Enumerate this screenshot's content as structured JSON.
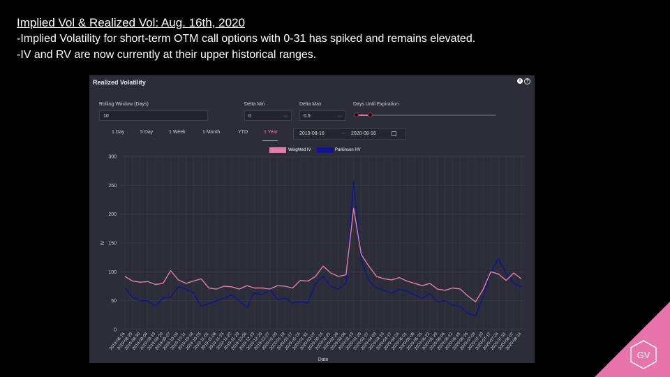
{
  "slide": {
    "title": "Implied Vol & Realized Vol: Aug. 16th, 2020",
    "lines": [
      "-Implied Volatility for short-term OTM call options with 0-31 has spiked and remains elevated.",
      "-IV and RV are now currently at their upper historical ranges."
    ]
  },
  "panel": {
    "title": "Realized Volatility",
    "info_icon_label": "i",
    "help_icon_label": "?",
    "controls": {
      "rolling_window_label": "Rolling Window (Days)",
      "rolling_window_value": "10",
      "delta_min_label": "Delta Min",
      "delta_min_value": "0",
      "delta_max_label": "Delta Max",
      "delta_max_value": "0.5",
      "days_until_expiration_label": "Days Until Expiration",
      "chevron": "⌵"
    },
    "range_tabs": [
      "1 Day",
      "5 Day",
      "1 Week",
      "1 Month",
      "YTD",
      "1 Year"
    ],
    "active_tab": "1 Year",
    "date_from": "2019-08-16",
    "date_arrow": "→",
    "date_to": "2020-08-16"
  },
  "colors": {
    "weighted_iv": "#e77ba9",
    "parkinson_hv": "#0f1592",
    "accent": "#e775ab"
  },
  "chart_data": {
    "type": "line",
    "xlabel": "Date",
    "ylabel": "IV",
    "ylim": [
      0,
      300
    ],
    "yticks": [
      0,
      50,
      100,
      150,
      200,
      250,
      300
    ],
    "grid": true,
    "legend_position": "top-center",
    "x_tick_labels": [
      "2019-08-16",
      "2019-08-23",
      "2019-08-30",
      "2019-09-06",
      "2019-09-13",
      "2019-09-20",
      "2019-09-27",
      "2019-10-04",
      "2019-10-11",
      "2019-10-18",
      "2019-10-25",
      "2019-11-01",
      "2019-11-08",
      "2019-11-15",
      "2019-11-22",
      "2019-11-29",
      "2019-12-06",
      "2019-12-13",
      "2019-12-20",
      "2019-12-27",
      "2020-01-03",
      "2020-01-10",
      "2020-01-17",
      "2020-01-24",
      "2020-01-31",
      "2020-02-07",
      "2020-02-14",
      "2020-02-21",
      "2020-02-28",
      "2020-03-06",
      "2020-03-13",
      "2020-03-20",
      "2020-03-27",
      "2020-04-03",
      "2020-04-10",
      "2020-04-17",
      "2020-04-24",
      "2020-05-01",
      "2020-05-08",
      "2020-05-15",
      "2020-05-22",
      "2020-05-29",
      "2020-06-05",
      "2020-06-12",
      "2020-06-19",
      "2020-06-26",
      "2020-07-03",
      "2020-07-10",
      "2020-07-17",
      "2020-07-24",
      "2020-07-31",
      "2020-08-07",
      "2020-08-14"
    ],
    "series": [
      {
        "name": "Weighted IV",
        "color": "#e77ba9",
        "values": [
          92,
          84,
          82,
          83,
          78,
          80,
          102,
          86,
          80,
          84,
          88,
          72,
          70,
          75,
          74,
          70,
          76,
          72,
          72,
          70,
          76,
          75,
          72,
          85,
          84,
          92,
          110,
          98,
          92,
          95,
          210,
          130,
          110,
          92,
          88,
          86,
          90,
          84,
          80,
          76,
          80,
          70,
          68,
          72,
          70,
          58,
          48,
          70,
          100,
          96,
          85,
          98,
          88
        ]
      },
      {
        "name": "Parkinson HV",
        "color": "#0f1592",
        "values": [
          72,
          56,
          50,
          50,
          40,
          55,
          56,
          74,
          70,
          64,
          40,
          45,
          50,
          54,
          60,
          50,
          38,
          64,
          60,
          70,
          52,
          54,
          46,
          48,
          46,
          80,
          92,
          75,
          70,
          80,
          256,
          120,
          85,
          72,
          68,
          63,
          70,
          66,
          60,
          54,
          62,
          48,
          50,
          42,
          40,
          28,
          24,
          56,
          100,
          122,
          98,
          80,
          74
        ]
      }
    ]
  },
  "logo": {
    "text": "GV"
  }
}
